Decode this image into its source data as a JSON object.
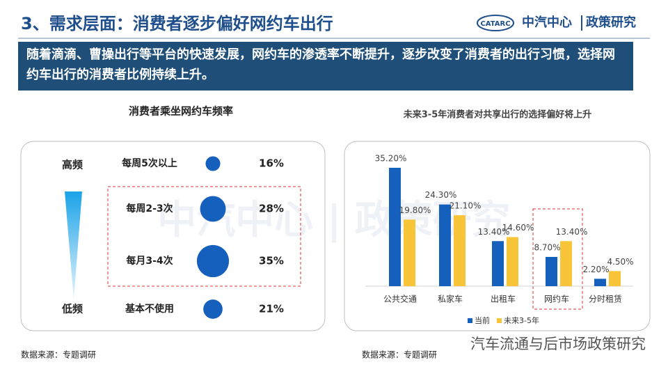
{
  "header": {
    "title": "3、需求层面：消费者逐步偏好网约车出行",
    "logo_mark": "CATARC",
    "logo_name": "中汽中心",
    "logo_division": "政策研究"
  },
  "banner": "随着滴滴、曹操出行等平台的快速发展，网约车的渗透率不断提升，逐步改变了消费者的出行习惯，选择网约车出行的消费者比例持续上升。",
  "watermark": "中汽中心 | 政策研究",
  "chart_data": [
    {
      "type": "bubble",
      "title": "消费者乘坐网约车频率",
      "high_label": "高频",
      "low_label": "低频",
      "categories": [
        "每周5次以上",
        "每周2-3次",
        "每月3-4次",
        "基本不使用"
      ],
      "values": [
        16,
        28,
        35,
        21
      ],
      "value_labels": [
        "16%",
        "28%",
        "35%",
        "21%"
      ],
      "color": "#1560bd",
      "source": "数据来源：专题调研"
    },
    {
      "type": "bar",
      "title": "未来3-5年消费者对共享出行的选择偏好将上升",
      "categories": [
        "公共交通",
        "私家车",
        "出租车",
        "网约车",
        "分时租赁"
      ],
      "series": [
        {
          "name": "当前",
          "color": "#1560bd",
          "values": [
            35.2,
            24.3,
            13.4,
            8.7,
            2.2
          ],
          "value_labels": [
            "35.20%",
            "24.30%",
            "13.40%",
            "8.70%",
            "2.20%"
          ]
        },
        {
          "name": "未来3-5年",
          "color": "#f9c538",
          "values": [
            19.8,
            21.1,
            14.6,
            13.4,
            4.5
          ],
          "value_labels": [
            "19.80%",
            "21.10%",
            "14.60%",
            "13.40%",
            "4.50%"
          ]
        }
      ],
      "legend": "bottom",
      "source": "数据来源：专题调研",
      "credit": "汽车流通与后市场政策研究"
    }
  ]
}
